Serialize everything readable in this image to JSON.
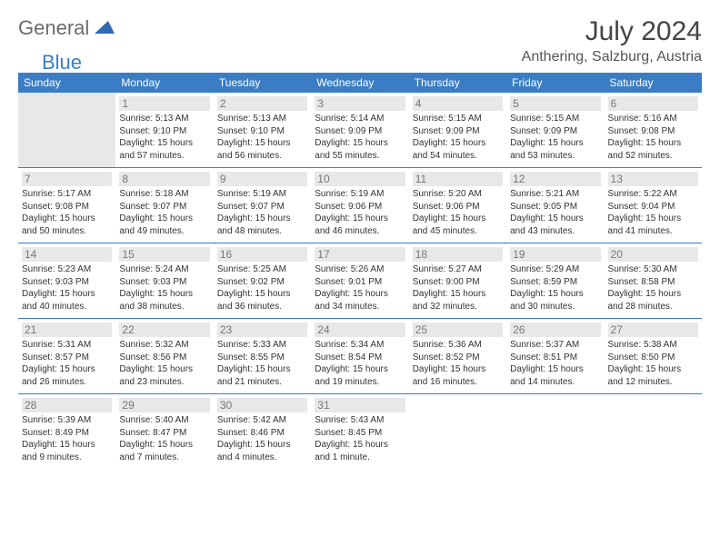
{
  "logo": {
    "word1": "General",
    "word2": "Blue"
  },
  "title": "July 2024",
  "location": "Anthering, Salzburg, Austria",
  "weekdays": [
    "Sunday",
    "Monday",
    "Tuesday",
    "Wednesday",
    "Thursday",
    "Friday",
    "Saturday"
  ],
  "colors": {
    "header_bg": "#3a7dc4",
    "header_text": "#ffffff",
    "daynum_bg": "#e8e8e8",
    "border": "#3a7dc4"
  },
  "grid": [
    [
      {
        "n": "",
        "sr": "",
        "ss": "",
        "dl": ""
      },
      {
        "n": "1",
        "sr": "Sunrise: 5:13 AM",
        "ss": "Sunset: 9:10 PM",
        "dl": "Daylight: 15 hours and 57 minutes."
      },
      {
        "n": "2",
        "sr": "Sunrise: 5:13 AM",
        "ss": "Sunset: 9:10 PM",
        "dl": "Daylight: 15 hours and 56 minutes."
      },
      {
        "n": "3",
        "sr": "Sunrise: 5:14 AM",
        "ss": "Sunset: 9:09 PM",
        "dl": "Daylight: 15 hours and 55 minutes."
      },
      {
        "n": "4",
        "sr": "Sunrise: 5:15 AM",
        "ss": "Sunset: 9:09 PM",
        "dl": "Daylight: 15 hours and 54 minutes."
      },
      {
        "n": "5",
        "sr": "Sunrise: 5:15 AM",
        "ss": "Sunset: 9:09 PM",
        "dl": "Daylight: 15 hours and 53 minutes."
      },
      {
        "n": "6",
        "sr": "Sunrise: 5:16 AM",
        "ss": "Sunset: 9:08 PM",
        "dl": "Daylight: 15 hours and 52 minutes."
      }
    ],
    [
      {
        "n": "7",
        "sr": "Sunrise: 5:17 AM",
        "ss": "Sunset: 9:08 PM",
        "dl": "Daylight: 15 hours and 50 minutes."
      },
      {
        "n": "8",
        "sr": "Sunrise: 5:18 AM",
        "ss": "Sunset: 9:07 PM",
        "dl": "Daylight: 15 hours and 49 minutes."
      },
      {
        "n": "9",
        "sr": "Sunrise: 5:19 AM",
        "ss": "Sunset: 9:07 PM",
        "dl": "Daylight: 15 hours and 48 minutes."
      },
      {
        "n": "10",
        "sr": "Sunrise: 5:19 AM",
        "ss": "Sunset: 9:06 PM",
        "dl": "Daylight: 15 hours and 46 minutes."
      },
      {
        "n": "11",
        "sr": "Sunrise: 5:20 AM",
        "ss": "Sunset: 9:06 PM",
        "dl": "Daylight: 15 hours and 45 minutes."
      },
      {
        "n": "12",
        "sr": "Sunrise: 5:21 AM",
        "ss": "Sunset: 9:05 PM",
        "dl": "Daylight: 15 hours and 43 minutes."
      },
      {
        "n": "13",
        "sr": "Sunrise: 5:22 AM",
        "ss": "Sunset: 9:04 PM",
        "dl": "Daylight: 15 hours and 41 minutes."
      }
    ],
    [
      {
        "n": "14",
        "sr": "Sunrise: 5:23 AM",
        "ss": "Sunset: 9:03 PM",
        "dl": "Daylight: 15 hours and 40 minutes."
      },
      {
        "n": "15",
        "sr": "Sunrise: 5:24 AM",
        "ss": "Sunset: 9:03 PM",
        "dl": "Daylight: 15 hours and 38 minutes."
      },
      {
        "n": "16",
        "sr": "Sunrise: 5:25 AM",
        "ss": "Sunset: 9:02 PM",
        "dl": "Daylight: 15 hours and 36 minutes."
      },
      {
        "n": "17",
        "sr": "Sunrise: 5:26 AM",
        "ss": "Sunset: 9:01 PM",
        "dl": "Daylight: 15 hours and 34 minutes."
      },
      {
        "n": "18",
        "sr": "Sunrise: 5:27 AM",
        "ss": "Sunset: 9:00 PM",
        "dl": "Daylight: 15 hours and 32 minutes."
      },
      {
        "n": "19",
        "sr": "Sunrise: 5:29 AM",
        "ss": "Sunset: 8:59 PM",
        "dl": "Daylight: 15 hours and 30 minutes."
      },
      {
        "n": "20",
        "sr": "Sunrise: 5:30 AM",
        "ss": "Sunset: 8:58 PM",
        "dl": "Daylight: 15 hours and 28 minutes."
      }
    ],
    [
      {
        "n": "21",
        "sr": "Sunrise: 5:31 AM",
        "ss": "Sunset: 8:57 PM",
        "dl": "Daylight: 15 hours and 26 minutes."
      },
      {
        "n": "22",
        "sr": "Sunrise: 5:32 AM",
        "ss": "Sunset: 8:56 PM",
        "dl": "Daylight: 15 hours and 23 minutes."
      },
      {
        "n": "23",
        "sr": "Sunrise: 5:33 AM",
        "ss": "Sunset: 8:55 PM",
        "dl": "Daylight: 15 hours and 21 minutes."
      },
      {
        "n": "24",
        "sr": "Sunrise: 5:34 AM",
        "ss": "Sunset: 8:54 PM",
        "dl": "Daylight: 15 hours and 19 minutes."
      },
      {
        "n": "25",
        "sr": "Sunrise: 5:36 AM",
        "ss": "Sunset: 8:52 PM",
        "dl": "Daylight: 15 hours and 16 minutes."
      },
      {
        "n": "26",
        "sr": "Sunrise: 5:37 AM",
        "ss": "Sunset: 8:51 PM",
        "dl": "Daylight: 15 hours and 14 minutes."
      },
      {
        "n": "27",
        "sr": "Sunrise: 5:38 AM",
        "ss": "Sunset: 8:50 PM",
        "dl": "Daylight: 15 hours and 12 minutes."
      }
    ],
    [
      {
        "n": "28",
        "sr": "Sunrise: 5:39 AM",
        "ss": "Sunset: 8:49 PM",
        "dl": "Daylight: 15 hours and 9 minutes."
      },
      {
        "n": "29",
        "sr": "Sunrise: 5:40 AM",
        "ss": "Sunset: 8:47 PM",
        "dl": "Daylight: 15 hours and 7 minutes."
      },
      {
        "n": "30",
        "sr": "Sunrise: 5:42 AM",
        "ss": "Sunset: 8:46 PM",
        "dl": "Daylight: 15 hours and 4 minutes."
      },
      {
        "n": "31",
        "sr": "Sunrise: 5:43 AM",
        "ss": "Sunset: 8:45 PM",
        "dl": "Daylight: 15 hours and 1 minute."
      },
      {
        "n": "",
        "sr": "",
        "ss": "",
        "dl": ""
      },
      {
        "n": "",
        "sr": "",
        "ss": "",
        "dl": ""
      },
      {
        "n": "",
        "sr": "",
        "ss": "",
        "dl": ""
      }
    ]
  ]
}
